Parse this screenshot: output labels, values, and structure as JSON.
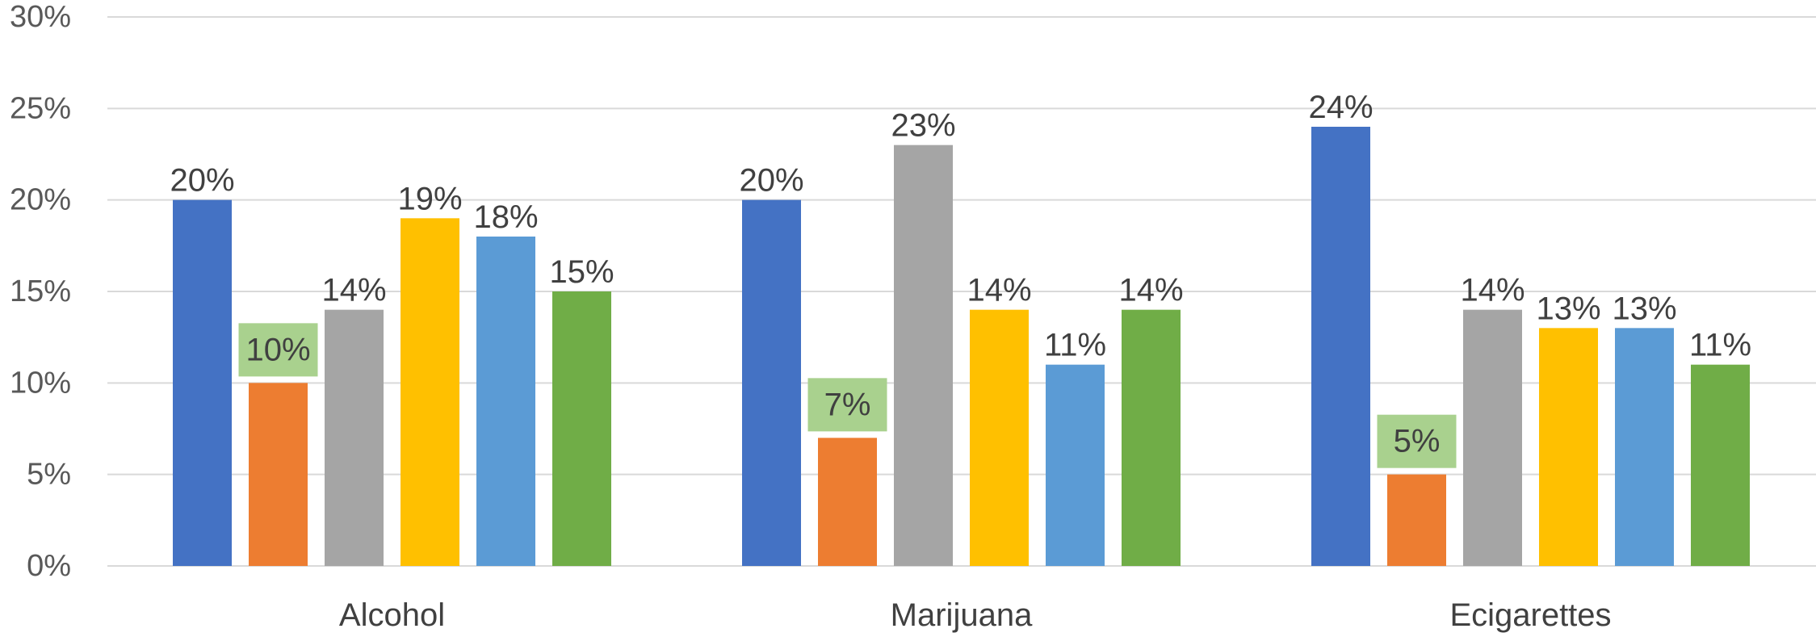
{
  "chart_data": {
    "type": "bar",
    "categories": [
      "Alcohol",
      "Marijuana",
      "Ecigarettes"
    ],
    "series": [
      {
        "color": "#4472C4",
        "values": [
          20,
          20,
          24
        ]
      },
      {
        "color": "#ED7D31",
        "values": [
          10,
          7,
          5
        ],
        "label_highlight": "#A9D18E"
      },
      {
        "color": "#A5A5A5",
        "values": [
          14,
          23,
          14
        ]
      },
      {
        "color": "#FFC000",
        "values": [
          19,
          14,
          13
        ]
      },
      {
        "color": "#5B9BD5",
        "values": [
          18,
          11,
          13
        ]
      },
      {
        "color": "#70AD47",
        "values": [
          15,
          14,
          11
        ]
      }
    ],
    "value_suffix": "%",
    "ylim": [
      0,
      30
    ],
    "yticks": [
      0,
      5,
      10,
      15,
      20,
      25,
      30
    ],
    "ytick_labels": [
      "0%",
      "5%",
      "10%",
      "15%",
      "20%",
      "25%",
      "30%"
    ],
    "grid": true,
    "legend": "none",
    "title": "",
    "xlabel": "",
    "ylabel": ""
  }
}
